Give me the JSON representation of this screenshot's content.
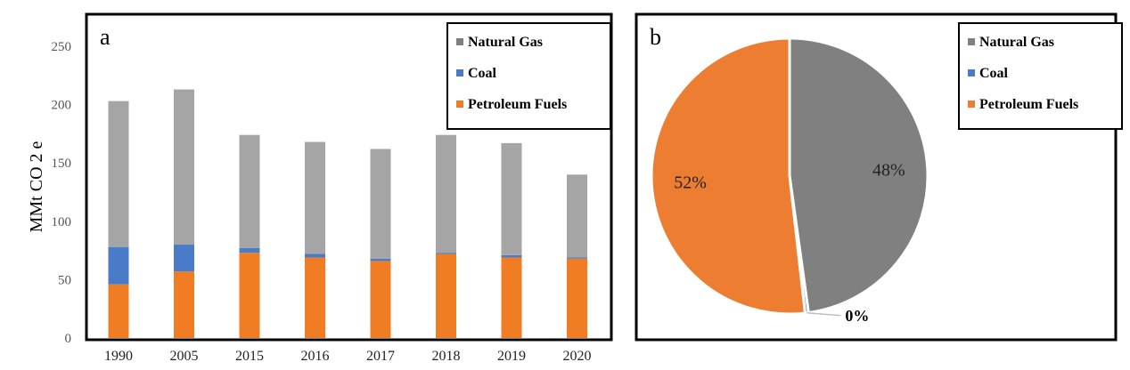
{
  "chart_data": [
    {
      "type": "bar",
      "stacked": true,
      "panel_label": "a",
      "categories": [
        "1990",
        "2005",
        "2015",
        "2016",
        "2017",
        "2018",
        "2019",
        "2020"
      ],
      "series": [
        {
          "name": "Petroleum Fuels",
          "color": "#f07c24",
          "values": [
            46,
            57,
            73,
            69,
            66,
            72,
            69,
            68
          ]
        },
        {
          "name": "Coal",
          "color": "#4a7bc8",
          "values": [
            32,
            23,
            4,
            3,
            2,
            1,
            2,
            1
          ]
        },
        {
          "name": "Natural Gas",
          "color": "#a5a5a5",
          "values": [
            125,
            133,
            97,
            96,
            94,
            101,
            96,
            71
          ]
        }
      ],
      "ylabel": "MMt CO 2 e",
      "ylim": [
        0,
        250
      ],
      "yticks": [
        "0",
        "50",
        "100",
        "150",
        "200",
        "250"
      ],
      "grid": false,
      "legend": {
        "position": "top-right",
        "entries": [
          "Natural Gas",
          "Coal",
          "Petroleum Fuels"
        ],
        "colors": [
          "#7f7f7f",
          "#4a7bc8",
          "#f07c24"
        ]
      }
    },
    {
      "type": "pie",
      "panel_label": "b",
      "slices": [
        {
          "name": "Natural Gas",
          "value": 48,
          "label": "48%",
          "color": "#808080"
        },
        {
          "name": "Coal",
          "value": 0.4,
          "label": "0%",
          "color": "#4a7bc8"
        },
        {
          "name": "Petroleum Fuels",
          "value": 52,
          "label": "52%",
          "color": "#ed7d31"
        }
      ],
      "legend": {
        "position": "top-right",
        "entries": [
          "Natural Gas",
          "Coal",
          "Petroleum Fuels"
        ],
        "colors": [
          "#808080",
          "#4a7bc8",
          "#ed7d31"
        ]
      }
    }
  ]
}
